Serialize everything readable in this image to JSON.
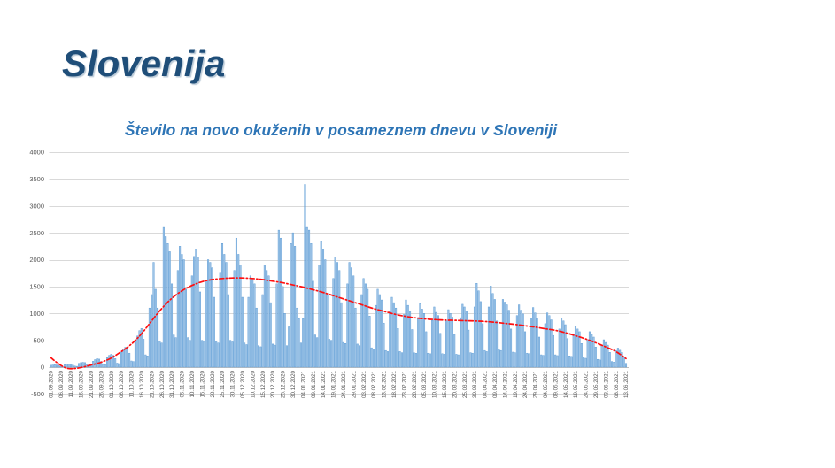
{
  "slide": {
    "title": "Slovenija",
    "title_color": "#1F4E79"
  },
  "chart_data": {
    "type": "bar",
    "title": "Število na novo okuženih v posameznem dnevu v Sloveniji",
    "title_color": "#2E75B6",
    "xlabel": "",
    "ylabel": "",
    "ylim": [
      -500,
      4000
    ],
    "yticks": [
      4000,
      3500,
      3000,
      2500,
      2000,
      1500,
      1000,
      500,
      0,
      -500
    ],
    "grid": true,
    "legend": "none",
    "start_date": "01.09.2020",
    "end_date": "13.06.2021",
    "tick_every_days": 5,
    "tick_labels": [
      "01.09.2020",
      "06.09.2020",
      "11.09.2020",
      "16.09.2020",
      "21.09.2020",
      "26.09.2020",
      "01.10.2020",
      "06.10.2020",
      "11.10.2020",
      "16.10.2020",
      "21.10.2020",
      "26.10.2020",
      "31.10.2020",
      "05.11.2020",
      "10.11.2020",
      "15.11.2020",
      "20.11.2020",
      "25.11.2020",
      "30.11.2020",
      "05.12.2020",
      "10.12.2020",
      "15.12.2020",
      "20.12.2020",
      "25.12.2020",
      "30.12.2020",
      "04.01.2021",
      "09.01.2021",
      "14.01.2021",
      "19.01.2021",
      "24.01.2021",
      "29.01.2021",
      "03.02.2021",
      "08.02.2021",
      "13.02.2021",
      "18.02.2021",
      "23.02.2021",
      "28.02.2021",
      "05.03.2021",
      "10.03.2021",
      "15.03.2021",
      "20.03.2021",
      "25.03.2021",
      "30.03.2021",
      "04.04.2021",
      "09.04.2021",
      "14.04.2021",
      "19.04.2021",
      "24.04.2021",
      "29.04.2021",
      "04.05.2021",
      "09.05.2021",
      "14.05.2021",
      "19.05.2021",
      "24.05.2021",
      "29.05.2021",
      "03.06.2021",
      "08.06.2021",
      "13.06.2021"
    ],
    "series": [
      {
        "name": "daily-new-cases",
        "type": "bar",
        "fill_color": "#9DC3E6",
        "edge_color": "#5B9BD5",
        "values": [
          35,
          40,
          45,
          40,
          30,
          15,
          10,
          45,
          55,
          60,
          55,
          40,
          20,
          15,
          70,
          85,
          90,
          85,
          60,
          30,
          25,
          110,
          140,
          160,
          150,
          105,
          50,
          45,
          180,
          220,
          240,
          220,
          160,
          75,
          65,
          280,
          340,
          370,
          350,
          260,
          115,
          105,
          500,
          580,
          680,
          720,
          520,
          230,
          210,
          1100,
          1350,
          1950,
          1450,
          1100,
          480,
          450,
          2600,
          2430,
          2300,
          2150,
          1550,
          600,
          550,
          1800,
          2250,
          2100,
          2000,
          1450,
          550,
          500,
          1700,
          2060,
          2200,
          2050,
          1400,
          500,
          480,
          1600,
          2000,
          1950,
          1850,
          1300,
          480,
          450,
          1750,
          2300,
          2100,
          1950,
          1350,
          500,
          470,
          1800,
          2400,
          2100,
          1900,
          1300,
          450,
          420,
          1300,
          1700,
          1650,
          1550,
          1100,
          400,
          380,
          1350,
          1900,
          1800,
          1700,
          1200,
          430,
          410,
          1550,
          2550,
          2400,
          1500,
          1000,
          400,
          750,
          2300,
          2500,
          2250,
          1100,
          900,
          450,
          900,
          3400,
          2600,
          2550,
          2300,
          1600,
          600,
          550,
          1900,
          2350,
          2200,
          2000,
          1350,
          520,
          500,
          1650,
          2050,
          1950,
          1800,
          1200,
          460,
          440,
          1550,
          1950,
          1850,
          1700,
          1100,
          430,
          400,
          1350,
          1650,
          1550,
          1450,
          950,
          360,
          340,
          1150,
          1450,
          1350,
          1250,
          820,
          310,
          290,
          1050,
          1300,
          1200,
          1100,
          720,
          290,
          270,
          980,
          1250,
          1150,
          1050,
          700,
          270,
          260,
          920,
          1180,
          1080,
          1000,
          660,
          260,
          250,
          870,
          1120,
          1020,
          960,
          630,
          250,
          240,
          860,
          1070,
          1000,
          930,
          610,
          240,
          230,
          920,
          1170,
          1120,
          1040,
          690,
          270,
          260,
          1120,
          1560,
          1420,
          1220,
          810,
          310,
          290,
          1120,
          1510,
          1370,
          1260,
          860,
          330,
          310,
          1260,
          1210,
          1160,
          1060,
          710,
          280,
          270,
          960,
          1160,
          1060,
          990,
          660,
          260,
          250,
          910,
          1110,
          1010,
          910,
          560,
          230,
          220,
          810,
          1010,
          960,
          880,
          590,
          230,
          215,
          710,
          910,
          860,
          790,
          530,
          210,
          200,
          610,
          760,
          710,
          660,
          440,
          175,
          165,
          510,
          660,
          610,
          560,
          375,
          145,
          135,
          410,
          510,
          460,
          410,
          275,
          105,
          95,
          310,
          355,
          315,
          275,
          185,
          70
        ]
      },
      {
        "name": "trend-line",
        "type": "line-dashed",
        "color": "#FF1010",
        "x": [
          0,
          4,
          8,
          12,
          16,
          20,
          25,
          30,
          35,
          40,
          45,
          50,
          55,
          60,
          65,
          70,
          75,
          80,
          85,
          90,
          95,
          100,
          105,
          110,
          115,
          120,
          125,
          130,
          135,
          140,
          145,
          150,
          155,
          160,
          165,
          170,
          175,
          180,
          185,
          190,
          195,
          200,
          205,
          210,
          215,
          220,
          225,
          230,
          235,
          240,
          245,
          250,
          255,
          260,
          265,
          270,
          275,
          280,
          285
        ],
        "y": [
          180,
          60,
          -20,
          -25,
          0,
          40,
          90,
          170,
          290,
          430,
          620,
          860,
          1090,
          1280,
          1420,
          1520,
          1590,
          1630,
          1650,
          1660,
          1660,
          1650,
          1630,
          1600,
          1570,
          1530,
          1490,
          1440,
          1390,
          1330,
          1270,
          1210,
          1150,
          1090,
          1040,
          990,
          950,
          920,
          900,
          885,
          875,
          870,
          865,
          860,
          850,
          835,
          815,
          795,
          770,
          745,
          715,
          685,
          640,
          585,
          525,
          455,
          375,
          290,
          160
        ]
      }
    ],
    "colors": {
      "gridline": "#D9D9D9",
      "axis_line": "#BFBFBF",
      "tick_label": "#595959"
    }
  }
}
